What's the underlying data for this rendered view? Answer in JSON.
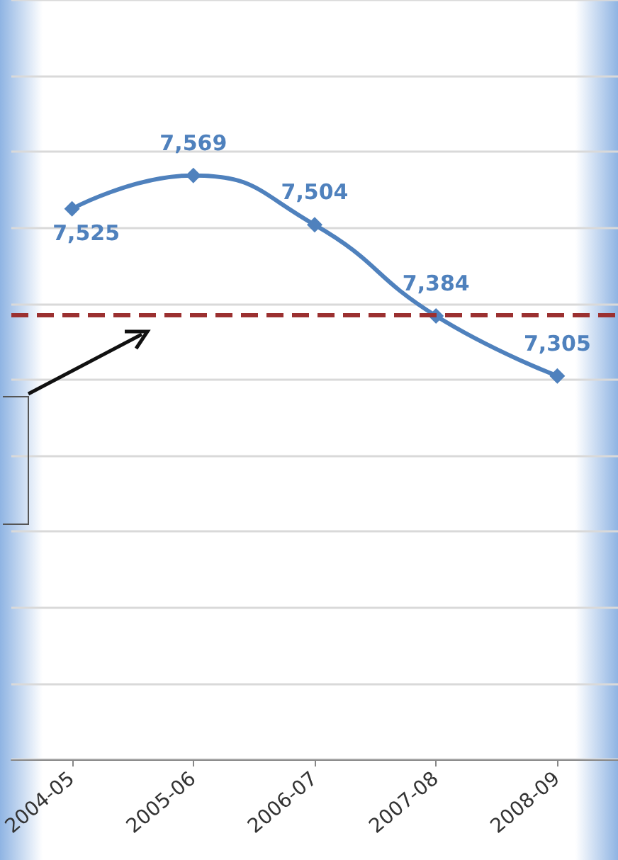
{
  "chart_data": {
    "type": "line",
    "categories": [
      "2004-05",
      "2005-06",
      "2006-07",
      "2007-08",
      "2008-09"
    ],
    "series": [
      {
        "color": "#4f81bd",
        "values": [
          7525,
          7569,
          7504,
          7384,
          7305
        ],
        "value_labels": [
          "7,525",
          "7,569",
          "7,504",
          "7,384",
          "7,305"
        ]
      }
    ],
    "ylim": [
      6800,
      7800
    ],
    "yticks": [
      {
        "value": 6800,
        "label": null
      },
      {
        "value": 6900,
        "label": null
      },
      {
        "value": 7000,
        "label": null
      },
      {
        "value": 7100,
        "label": null
      },
      {
        "value": 7200,
        "label": null
      },
      {
        "value": 7300,
        "label": null
      },
      {
        "value": 7400,
        "label": null
      },
      {
        "value": 7500,
        "label": null
      },
      {
        "value": 7600,
        "label": null
      },
      {
        "value": 7700,
        "label": null
      },
      {
        "value": 7800,
        "label": null
      }
    ],
    "tick_labels": "x",
    "grid": "y",
    "marker": "diamond",
    "line_style": "solid",
    "ref_lines": [
      {
        "axis": "y",
        "value": 7385,
        "color": "#9b3030",
        "line_style": "dashed"
      }
    ]
  }
}
